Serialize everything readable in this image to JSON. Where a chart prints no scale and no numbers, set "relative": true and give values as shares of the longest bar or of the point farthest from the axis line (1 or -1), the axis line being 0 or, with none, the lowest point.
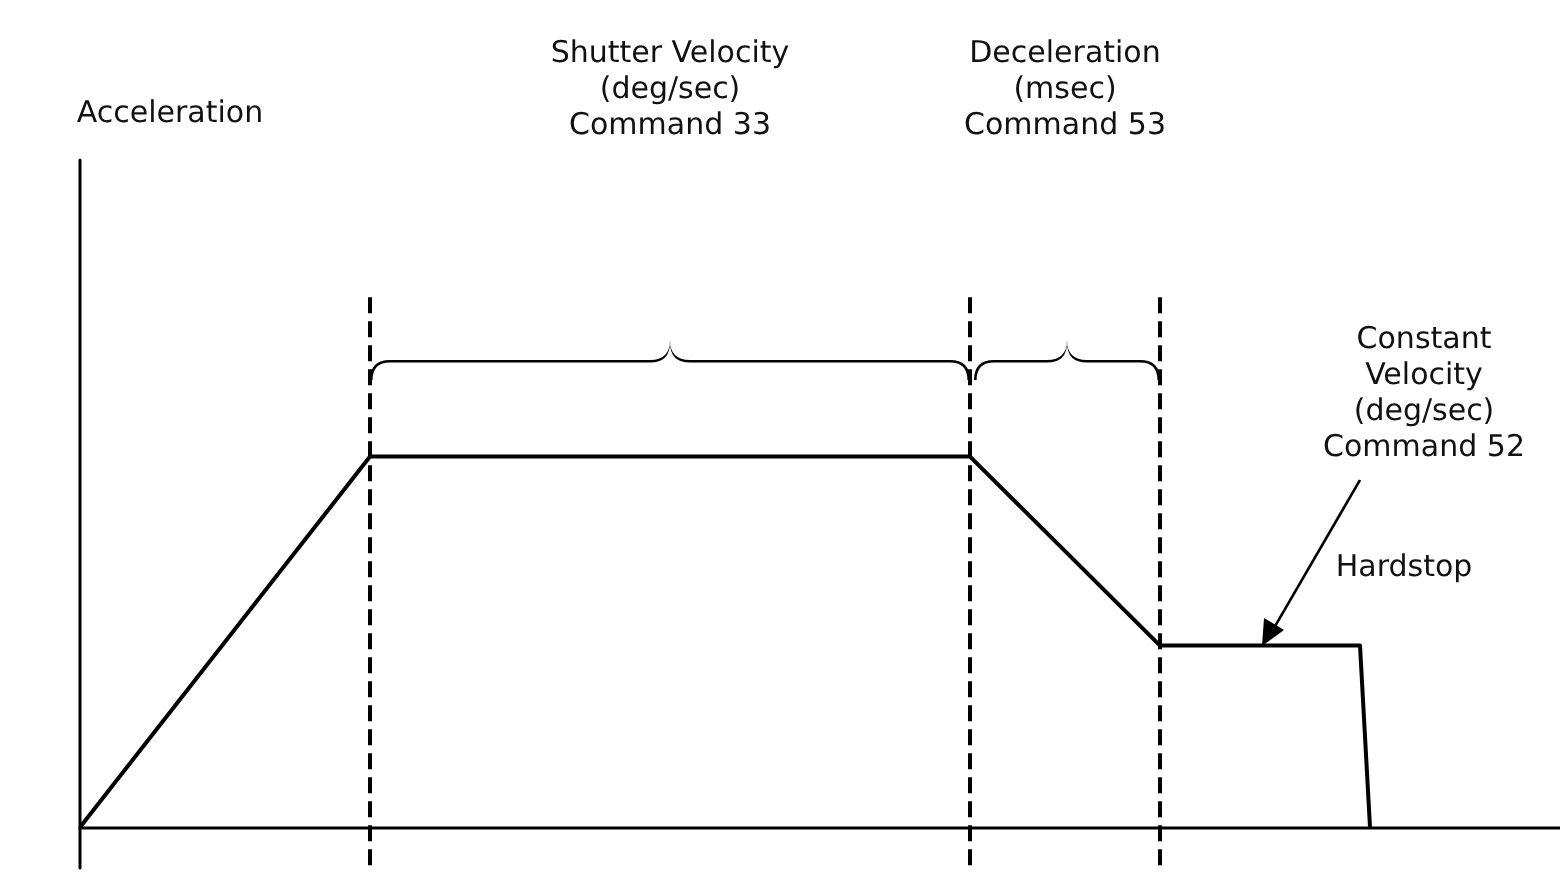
{
  "chart_data": {
    "type": "line",
    "relative": true,
    "categories": [
      null,
      null,
      null,
      null,
      null,
      null,
      null,
      null,
      null,
      null,
      null,
      null,
      null,
      null,
      null,
      null,
      null,
      null,
      null,
      null,
      null,
      null,
      null,
      null,
      null,
      null,
      null,
      null,
      null,
      null,
      null,
      null,
      null,
      null,
      null,
      null,
      null,
      null,
      null,
      null,
      null,
      null,
      null,
      null,
      null,
      null,
      null,
      null,
      null,
      null,
      null,
      null,
      null,
      null,
      null,
      null,
      null,
      null,
      null,
      null,
      null,
      null,
      null,
      null,
      null,
      null,
      null,
      null,
      null,
      null,
      null,
      null,
      null,
      null,
      null,
      null,
      null,
      null,
      null,
      null,
      null,
      null,
      null,
      null,
      null,
      null,
      null,
      null,
      null,
      null,
      null,
      null,
      null,
      null,
      null,
      null,
      null,
      null,
      null,
      null,
      null,
      null,
      null,
      null,
      null,
      null,
      null,
      null,
      null,
      null,
      null,
      null,
      null,
      null,
      null,
      null,
      null,
      null,
      null,
      null,
      null,
      null,
      null,
      null,
      null,
      null,
      null,
      null,
      null,
      null,
      null,
      null,
      null,
      null,
      null,
      null,
      null,
      null,
      null,
      null,
      null,
      null,
      null,
      null,
      null,
      null,
      null,
      null,
      null
    ],
    "series": [
      {
        "color": "#000000",
        "values": [
          0,
          null,
          null,
          null,
          null,
          null,
          null,
          null,
          null,
          null,
          null,
          null,
          null,
          null,
          null,
          null,
          null,
          null,
          null,
          null,
          null,
          null,
          null,
          null,
          null,
          null,
          null,
          null,
          null,
          1,
          null,
          null,
          null,
          null,
          null,
          null,
          null,
          null,
          null,
          null,
          null,
          null,
          null,
          null,
          null,
          null,
          null,
          null,
          null,
          null,
          null,
          null,
          null,
          null,
          null,
          null,
          null,
          null,
          null,
          null,
          null,
          null,
          null,
          null,
          null,
          null,
          null,
          null,
          null,
          null,
          null,
          null,
          null,
          null,
          null,
          null,
          null,
          null,
          null,
          null,
          null,
          null,
          null,
          null,
          null,
          null,
          null,
          null,
          null,
          1,
          null,
          null,
          null,
          null,
          null,
          null,
          null,
          null,
          null,
          null,
          null,
          null,
          null,
          null,
          null,
          null,
          null,
          null,
          0.49,
          null,
          null,
          null,
          null,
          null,
          null,
          null,
          null,
          null,
          null,
          null,
          null,
          null,
          null,
          null,
          null,
          null,
          null,
          null,
          0.49,
          0,
          null,
          null,
          null,
          null,
          null,
          null,
          null,
          null,
          null,
          null,
          null,
          null,
          null,
          null,
          null,
          null,
          null,
          null,
          null
        ]
      }
    ],
    "annotations": [
      "Acceleration",
      "Shutter Velocity\n(deg/sec)\nCommand 33",
      "Deceleration\n(msec)\nCommand 53",
      "Constant\nVelocity\n(deg/sec)\nCommand 52",
      "Hardstop"
    ],
    "grid": false,
    "line_style": "solid"
  }
}
